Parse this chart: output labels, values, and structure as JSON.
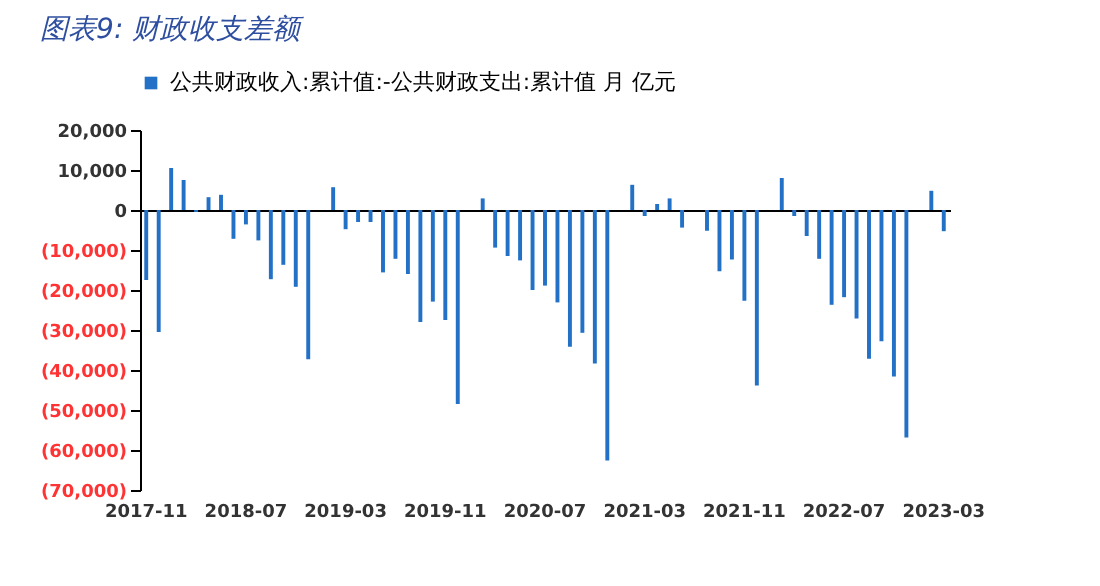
{
  "chart_data": {
    "type": "bar",
    "title": "图表9:  财政收支差额",
    "categories": [
      "2017-11",
      null,
      null,
      null,
      null,
      null,
      null,
      null,
      "2018-07",
      null,
      null,
      null,
      null,
      null,
      null,
      null,
      "2019-03",
      null,
      null,
      null,
      null,
      null,
      null,
      null,
      "2019-11",
      null,
      null,
      null,
      null,
      null,
      null,
      null,
      "2020-07",
      null,
      null,
      null,
      null,
      null,
      null,
      null,
      "2021-03",
      null,
      null,
      null,
      null,
      null,
      null,
      null,
      "2021-11",
      null,
      null,
      null,
      null,
      null,
      null,
      null,
      "2022-07",
      null,
      null,
      null,
      null,
      null,
      null,
      null,
      "2023-03"
    ],
    "series": [
      {
        "name": "公共财政收入:累计值:-公共财政支出:累计值 月 亿元",
        "color": "#2271c6",
        "values": [
          -17500,
          -30500,
          10500,
          7500,
          -500,
          3200,
          3800,
          -7200,
          -3600,
          -7600,
          -17300,
          -13700,
          -19200,
          -37300,
          null,
          5700,
          -4800,
          -3000,
          -3000,
          -15600,
          -12200,
          -16000,
          -28000,
          -22900,
          -27500,
          -48500,
          null,
          2900,
          -9400,
          -11500,
          -12600,
          -20000,
          -18900,
          -23100,
          -34200,
          -30700,
          -38400,
          -62600,
          null,
          6300,
          -1500,
          1500,
          2900,
          -4400,
          null,
          -5200,
          -15300,
          -12400,
          -22700,
          -43900,
          null,
          8000,
          -1500,
          -6500,
          -12200,
          -23700,
          -21800,
          -27100,
          -37200,
          -32800,
          -41600,
          -56900,
          null,
          4800,
          -5300
        ]
      }
    ],
    "ylim": [
      -70000,
      20000
    ],
    "yticks": [
      {
        "value": 20000,
        "label": "20,000"
      },
      {
        "value": 10000,
        "label": "10,000"
      },
      0,
      {
        "value": -10000,
        "label": "(10,000)"
      },
      {
        "value": -20000,
        "label": "(20,000)"
      },
      {
        "value": -30000,
        "label": "(30,000)"
      },
      {
        "value": -40000,
        "label": "(40,000)"
      },
      {
        "value": -50000,
        "label": "(50,000)"
      },
      {
        "value": -60000,
        "label": "(60,000)"
      },
      {
        "value": -70000,
        "label": "(70,000)"
      }
    ],
    "legend": "top"
  }
}
